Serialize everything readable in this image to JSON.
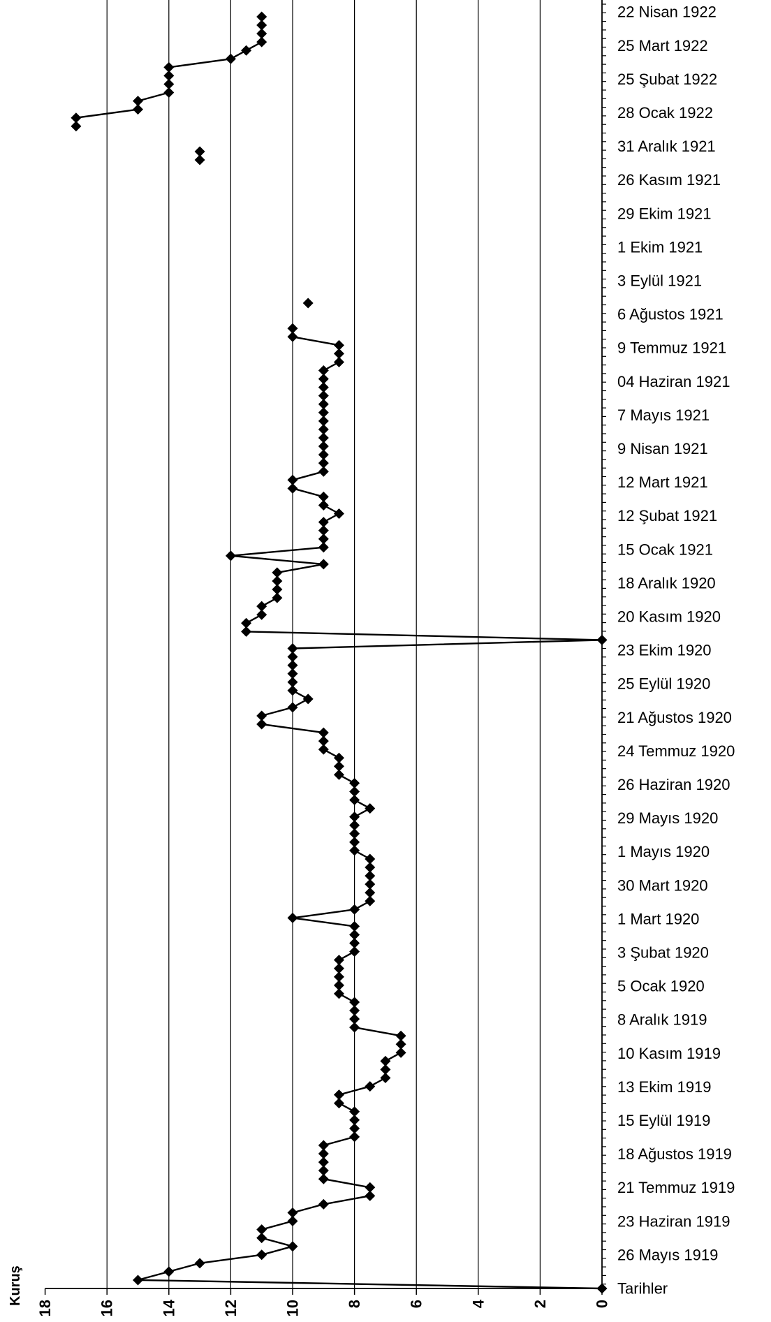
{
  "chart_data": {
    "type": "line",
    "orientation": "rotated",
    "ylabel": "Kuruş",
    "ylim": [
      0,
      18
    ],
    "yticks": [
      18,
      16,
      14,
      12,
      10,
      8,
      6,
      4,
      2,
      0
    ],
    "grid": "vertical",
    "marker": "diamond",
    "date_labels": [
      "Tarihler",
      "26 Mayıs 1919",
      "23 Haziran 1919",
      "21 Temmuz 1919",
      "18 Ağustos 1919",
      "15 Eylül 1919",
      "13 Ekim 1919",
      "10 Kasım 1919",
      "8 Aralık 1919",
      "5 Ocak 1920",
      "3 Şubat 1920",
      "1 Mart 1920",
      "30 Mart 1920",
      "1 Mayıs 1920",
      "29 Mayıs 1920",
      "26 Haziran 1920",
      "24 Temmuz 1920",
      "21 Ağustos 1920",
      "25 Eylül 1920",
      "23 Ekim 1920",
      "20 Kasım 1920",
      "18 Aralık 1920",
      "15 Ocak 1921",
      "12 Şubat 1921",
      "12 Mart 1921",
      "9 Nisan 1921",
      "7 Mayıs 1921",
      "04 Haziran 1921",
      "9 Temmuz 1921",
      "6 Ağustos 1921",
      "3 Eylül 1921",
      "1 Ekim 1921",
      "29 Ekim 1921",
      "26 Kasım 1921",
      "31 Aralık 1921",
      "28 Ocak 1922",
      "25 Şubat 1922",
      "25 Mart 1922",
      "22 Nisan 1922"
    ],
    "series": [
      {
        "values": [
          0,
          15,
          14,
          13,
          11,
          10,
          11,
          11,
          10,
          10,
          9,
          7.5,
          7.5,
          9,
          9,
          9,
          9,
          9,
          8,
          8,
          8,
          8,
          8.5,
          8.5,
          7.5,
          7,
          7,
          7,
          6.5,
          6.5,
          6.5,
          8,
          8,
          8,
          8,
          8.5,
          8.5,
          8.5,
          8.5,
          8.5,
          8,
          8,
          8,
          8,
          10,
          8,
          7.5,
          7.5,
          7.5,
          7.5,
          7.5,
          7.5,
          8,
          8,
          8,
          8,
          8,
          7.5,
          8,
          8,
          8,
          8.5,
          8.5,
          8.5,
          9,
          9,
          9,
          11,
          11,
          10,
          9.5,
          10,
          10,
          10,
          10,
          10,
          10,
          0,
          11.5,
          11.5,
          11,
          11,
          10.5,
          10.5,
          10.5,
          10.5,
          9,
          12,
          9,
          9,
          9,
          9,
          8.5,
          9,
          9,
          10,
          10,
          9,
          9,
          9,
          9,
          9,
          9,
          9,
          9,
          9,
          9,
          9,
          9,
          9,
          8.5,
          8.5,
          8.5,
          10,
          10,
          null,
          null,
          9.5,
          null,
          null,
          null,
          null,
          null,
          null,
          null,
          null,
          null,
          null,
          null,
          null,
          null,
          null,
          null,
          null,
          13,
          13,
          null,
          null,
          17,
          17,
          15,
          15,
          14,
          14,
          14,
          14,
          12,
          11.5,
          11,
          11,
          11,
          11
        ]
      }
    ]
  }
}
